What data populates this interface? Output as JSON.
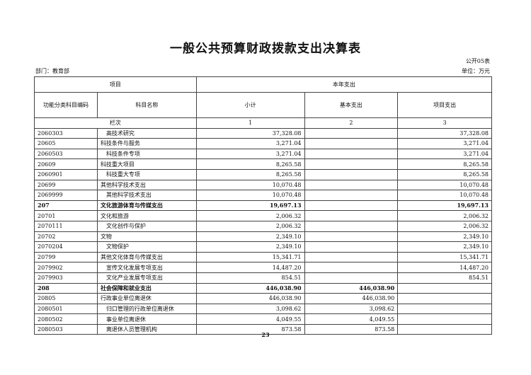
{
  "title": "一般公共预算财政拨款支出决算表",
  "form_no": "公开05表",
  "department": "部门：教育部",
  "unit": "单位：万元",
  "header": {
    "item": "项目",
    "current_year": "本年支出",
    "code": "功能分类科目编码",
    "name": "科目名称",
    "subtotal": "小计",
    "basic": "基本支出",
    "project": "项目支出",
    "column_no": "栏次",
    "col1": "1",
    "col2": "2",
    "col3": "3"
  },
  "rows": [
    {
      "code": "2060303",
      "name": "高技术研究",
      "subtotal": "37,328.08",
      "basic": "",
      "project": "37,328.08",
      "level": 2
    },
    {
      "code": "20605",
      "name": "科技条件与服务",
      "subtotal": "3,271.04",
      "basic": "",
      "project": "3,271.04",
      "level": 1
    },
    {
      "code": "2060503",
      "name": "科技条件专项",
      "subtotal": "3,271.04",
      "basic": "",
      "project": "3,271.04",
      "level": 2
    },
    {
      "code": "20609",
      "name": "科技重大项目",
      "subtotal": "8,265.58",
      "basic": "",
      "project": "8,265.58",
      "level": 1
    },
    {
      "code": "2060901",
      "name": "科技重大专项",
      "subtotal": "8,265.58",
      "basic": "",
      "project": "8,265.58",
      "level": 2
    },
    {
      "code": "20699",
      "name": "其他科学技术支出",
      "subtotal": "10,070.48",
      "basic": "",
      "project": "10,070.48",
      "level": 1
    },
    {
      "code": "2069999",
      "name": "其他科学技术支出",
      "subtotal": "10,070.48",
      "basic": "",
      "project": "10,070.48",
      "level": 2
    },
    {
      "code": "207",
      "name": "文化旅游体育与传媒支出",
      "subtotal": "19,697.13",
      "basic": "",
      "project": "19,697.13",
      "level": 0
    },
    {
      "code": "20701",
      "name": "文化和旅游",
      "subtotal": "2,006.32",
      "basic": "",
      "project": "2,006.32",
      "level": 1
    },
    {
      "code": "2070111",
      "name": "文化创作与保护",
      "subtotal": "2,006.32",
      "basic": "",
      "project": "2,006.32",
      "level": 2
    },
    {
      "code": "20702",
      "name": "文物",
      "subtotal": "2,349.10",
      "basic": "",
      "project": "2,349.10",
      "level": 1
    },
    {
      "code": "2070204",
      "name": "文物保护",
      "subtotal": "2,349.10",
      "basic": "",
      "project": "2,349.10",
      "level": 2
    },
    {
      "code": "20799",
      "name": "其他文化体育与传媒支出",
      "subtotal": "15,341.71",
      "basic": "",
      "project": "15,341.71",
      "level": 1
    },
    {
      "code": "2079902",
      "name": "宣传文化发展专项支出",
      "subtotal": "14,487.20",
      "basic": "",
      "project": "14,487.20",
      "level": 2
    },
    {
      "code": "2079903",
      "name": "文化产业发展专项支出",
      "subtotal": "854.51",
      "basic": "",
      "project": "854.51",
      "level": 2
    },
    {
      "code": "208",
      "name": "社会保障和就业支出",
      "subtotal": "446,038.90",
      "basic": "446,038.90",
      "project": "",
      "level": 0
    },
    {
      "code": "20805",
      "name": "行政事业单位离退休",
      "subtotal": "446,038.90",
      "basic": "446,038.90",
      "project": "",
      "level": 1
    },
    {
      "code": "2080501",
      "name": "归口管理的行政单位离退休",
      "subtotal": "3,098.62",
      "basic": "3,098.62",
      "project": "",
      "level": 2
    },
    {
      "code": "2080502",
      "name": "事业单位离退休",
      "subtotal": "4,049.55",
      "basic": "4,049.55",
      "project": "",
      "level": 2
    },
    {
      "code": "2080503",
      "name": "离退休人员管理机构",
      "subtotal": "873.58",
      "basic": "873.58",
      "project": "",
      "level": 2
    }
  ],
  "page_number": "23"
}
